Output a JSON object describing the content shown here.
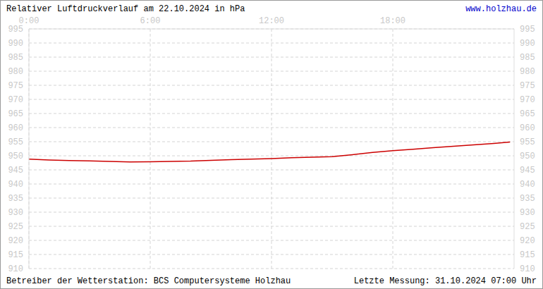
{
  "chart_data": {
    "type": "line",
    "title": "Relativer Luftdruckverlauf am 22.10.2024 in hPa",
    "subtitle": "www.holzhau.de",
    "annotations": [
      "Betreiber der Wetterstation: BCS Computersysteme Holzhau",
      "Letzte Messung: 31.10.2024 07:00 Uhr"
    ],
    "x": [
      0,
      1,
      2,
      3,
      4,
      5,
      6,
      7,
      8,
      9,
      10,
      11,
      12,
      13,
      14,
      15,
      16,
      17,
      18,
      19,
      20,
      21,
      22,
      23,
      23.8
    ],
    "series": [
      {
        "name": "Luftdruck",
        "color": "#cc0000",
        "values": [
          948.8,
          948.5,
          948.3,
          948.2,
          948.0,
          947.8,
          947.9,
          948.0,
          948.1,
          948.4,
          948.6,
          948.8,
          949.0,
          949.3,
          949.5,
          949.7,
          950.4,
          951.2,
          951.8,
          952.3,
          952.9,
          953.4,
          953.9,
          954.4,
          954.9
        ]
      }
    ],
    "xlim": [
      0,
      24
    ],
    "xticks": [
      {
        "value": 0,
        "label": "0:00"
      },
      {
        "value": 6,
        "label": "6:00"
      },
      {
        "value": 12,
        "label": "12:00"
      },
      {
        "value": 18,
        "label": "18:00"
      }
    ],
    "ylim": [
      910,
      995
    ],
    "yticks": [
      910,
      915,
      920,
      925,
      930,
      935,
      940,
      945,
      950,
      955,
      960,
      965,
      970,
      975,
      980,
      985,
      990,
      995
    ],
    "grid": true
  }
}
